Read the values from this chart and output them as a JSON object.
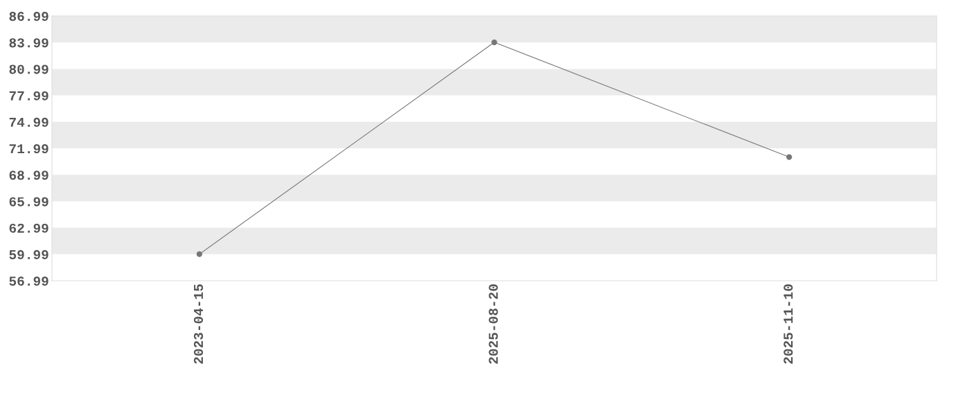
{
  "chart_data": {
    "type": "line",
    "categories": [
      "2023-04-15",
      "2025-08-20",
      "2025-11-10"
    ],
    "series": [
      {
        "color": "#777777",
        "values": [
          60,
          84,
          71
        ]
      }
    ],
    "ylim": [
      56.99,
      86.99
    ],
    "yticks": [
      56.99,
      59.99,
      62.99,
      65.99,
      68.99,
      71.99,
      74.99,
      77.99,
      80.99,
      83.99,
      86.99
    ],
    "bands": [
      {
        "axis": "y",
        "from": 59.99,
        "to": 62.99,
        "color": "#ebebeb"
      },
      {
        "axis": "y",
        "from": 65.99,
        "to": 68.99,
        "color": "#ebebeb"
      },
      {
        "axis": "y",
        "from": 71.99,
        "to": 74.99,
        "color": "#ebebeb"
      },
      {
        "axis": "y",
        "from": 77.99,
        "to": 80.99,
        "color": "#ebebeb"
      },
      {
        "axis": "y",
        "from": 83.99,
        "to": 86.99,
        "color": "#ebebeb"
      }
    ],
    "marker": "circle",
    "line_style": "solid"
  }
}
